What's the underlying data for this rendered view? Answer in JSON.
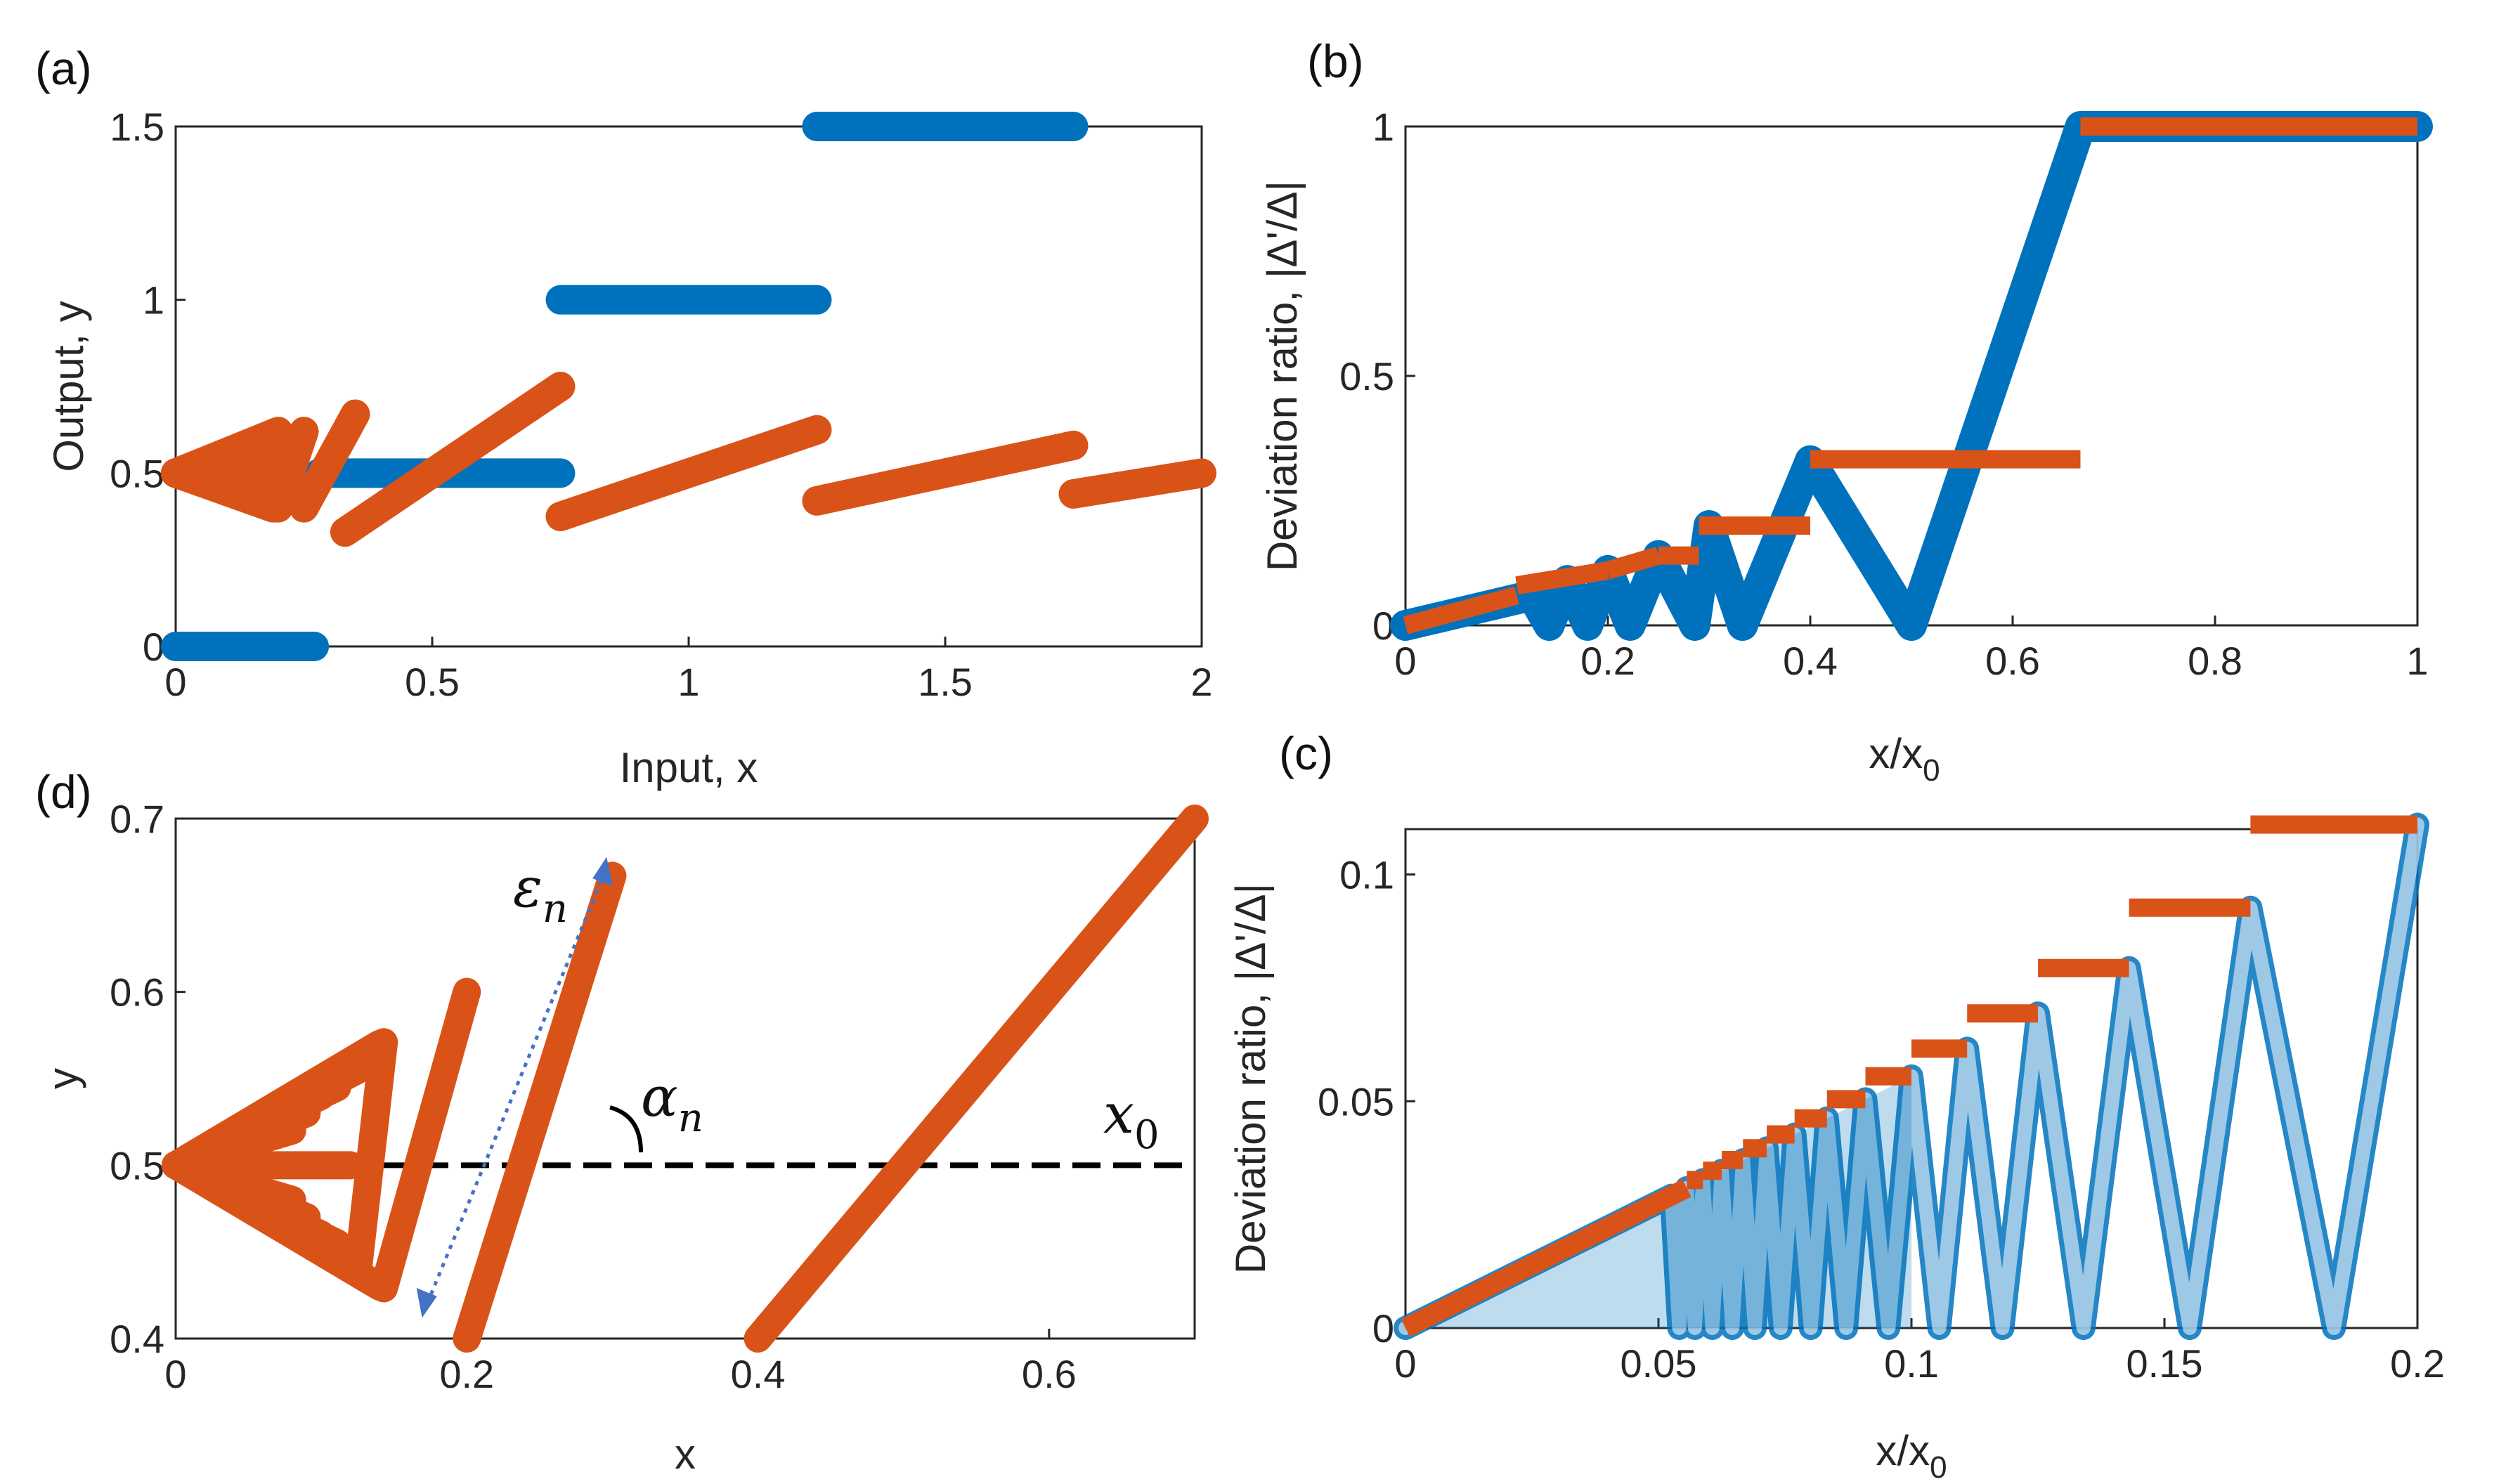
{
  "colors": {
    "blue": "#0072BD",
    "orange": "#D95319",
    "axis": "#262626",
    "dashed": "#000000",
    "arrow": "#4472C4"
  },
  "panels": {
    "a": {
      "letter": "(a)"
    },
    "b": {
      "letter": "(b)"
    },
    "c": {
      "letter": "(c)"
    },
    "d": {
      "letter": "(d)",
      "annotations": {
        "epsilon": "ε",
        "epsilon_sub": "n",
        "alpha": "α",
        "alpha_sub": "n",
        "x0": "x",
        "x0_sub": "0"
      }
    }
  },
  "chart_data": [
    {
      "id": "a",
      "type": "scatter",
      "xlabel": "Input, x",
      "ylabel": "Output, y",
      "xlim": [
        0,
        2
      ],
      "ylim": [
        0,
        1.5
      ],
      "xticks": [
        0,
        0.5,
        1,
        1.5,
        2
      ],
      "xtick_labels": [
        "0",
        "0.5",
        "1",
        "1.5",
        "2"
      ],
      "yticks": [
        0,
        0.5,
        1,
        1.5
      ],
      "ytick_labels": [
        "0",
        "0.5",
        "1",
        "1.5"
      ],
      "grid": false,
      "series": [
        {
          "color": "blue",
          "segments": [
            [
              [
                0,
                0
              ],
              [
                0.27,
                0
              ]
            ],
            [
              [
                0.28,
                0.5
              ],
              [
                0.75,
                0.5
              ]
            ],
            [
              [
                0.75,
                1
              ],
              [
                1.25,
                1
              ]
            ],
            [
              [
                1.25,
                1.5
              ],
              [
                1.75,
                1.5
              ]
            ]
          ]
        },
        {
          "color": "orange",
          "segments": [
            [
              [
                0,
                0.5
              ],
              [
                0.2,
                0.62
              ]
            ],
            [
              [
                0,
                0.5
              ],
              [
                0.2,
                0.6
              ]
            ],
            [
              [
                0,
                0.5
              ],
              [
                0.2,
                0.58
              ]
            ],
            [
              [
                0,
                0.5
              ],
              [
                0.2,
                0.56
              ]
            ],
            [
              [
                0,
                0.5
              ],
              [
                0.2,
                0.54
              ]
            ],
            [
              [
                0,
                0.5
              ],
              [
                0.2,
                0.46
              ]
            ],
            [
              [
                0,
                0.5
              ],
              [
                0.2,
                0.44
              ]
            ],
            [
              [
                0,
                0.5
              ],
              [
                0.2,
                0.42
              ]
            ],
            [
              [
                0,
                0.5
              ],
              [
                0.19,
                0.4
              ]
            ],
            [
              [
                0,
                0.5
              ],
              [
                0.12,
                0.5
              ]
            ],
            [
              [
                0.2,
                0.4
              ],
              [
                0.25,
                0.62
              ]
            ],
            [
              [
                0.25,
                0.4
              ],
              [
                0.35,
                0.67
              ]
            ],
            [
              [
                0.33,
                0.33
              ],
              [
                0.75,
                0.75
              ]
            ],
            [
              [
                0.75,
                0.375
              ],
              [
                1.25,
                0.625
              ]
            ],
            [
              [
                1.25,
                0.42
              ],
              [
                1.75,
                0.58
              ]
            ],
            [
              [
                1.75,
                0.44
              ],
              [
                2,
                0.5
              ]
            ]
          ]
        }
      ]
    },
    {
      "id": "b",
      "type": "line",
      "xlabel": "x/x",
      "xlabel_sub": "0",
      "ylabel": "Deviation ratio, |Δ'/Δ|",
      "xlim": [
        0,
        1
      ],
      "ylim": [
        0,
        1
      ],
      "xticks": [
        0,
        0.2,
        0.4,
        0.6,
        0.8,
        1
      ],
      "xtick_labels": [
        "0",
        "0.2",
        "0.4",
        "0.6",
        "0.8",
        "1"
      ],
      "yticks": [
        0,
        0.5,
        1
      ],
      "ytick_labels": [
        "0",
        "0.5",
        "1"
      ],
      "grid": false,
      "series": [
        {
          "color": "blue",
          "marker": "filled-circle",
          "polyline": [
            [
              0,
              0
            ],
            [
              0.125,
              0.06
            ],
            [
              0.142,
              0
            ],
            [
              0.16,
              0.09
            ],
            [
              0.18,
              0
            ],
            [
              0.2,
              0.11
            ],
            [
              0.222,
              0
            ],
            [
              0.25,
              0.14
            ],
            [
              0.286,
              0
            ],
            [
              0.286,
              0
            ],
            [
              0.3,
              0.2
            ],
            [
              0.333,
              0
            ],
            [
              0.4,
              0.33
            ],
            [
              0.5,
              0
            ],
            [
              0.667,
              1
            ],
            [
              1,
              1
            ]
          ]
        },
        {
          "color": "orange",
          "marker": "x",
          "segments": [
            [
              [
                0,
                0
              ],
              [
                0.11,
                0.06
              ]
            ],
            [
              [
                0.11,
                0.08
              ],
              [
                0.2,
                0.11
              ]
            ],
            [
              [
                0.2,
                0.11
              ],
              [
                0.25,
                0.14
              ]
            ],
            [
              [
                0.25,
                0.14
              ],
              [
                0.29,
                0.14
              ]
            ],
            [
              [
                0.29,
                0.2
              ],
              [
                0.4,
                0.2
              ]
            ],
            [
              [
                0.4,
                0.333
              ],
              [
                0.667,
                0.333
              ]
            ],
            [
              [
                0.667,
                1
              ],
              [
                1,
                1
              ]
            ]
          ]
        }
      ]
    },
    {
      "id": "c",
      "type": "line",
      "xlabel": "x/x",
      "xlabel_sub": "0",
      "ylabel": "Deviation ratio, |Δ'/Δ|",
      "xlim": [
        0,
        0.2
      ],
      "ylim": [
        0,
        0.11
      ],
      "xticks": [
        0,
        0.05,
        0.1,
        0.15,
        0.2
      ],
      "xtick_labels": [
        "0",
        "0.05",
        "0.1",
        "0.15",
        "0.2"
      ],
      "yticks": [
        0,
        0.05,
        0.1
      ],
      "ytick_labels": [
        "0",
        "0.05",
        "0.1"
      ],
      "grid": false,
      "series": [
        {
          "color": "blue",
          "marker": "open-circle",
          "peaks": [
            [
              0.0526,
              0.0556
            ],
            [
              0.0556,
              0.0588
            ],
            [
              0.0588,
              0.0625
            ],
            [
              0.0625,
              0.0667
            ],
            [
              0.0667,
              0.0714
            ],
            [
              0.0714,
              0.0769
            ],
            [
              0.0769,
              0.0833
            ],
            [
              0.0833,
              0.0909
            ],
            [
              0.0909,
              0.1
            ],
            [
              0.1,
              0.111
            ],
            [
              0.111,
              0.125
            ],
            [
              0.125,
              0.143
            ],
            [
              0.143,
              0.167
            ],
            [
              0.167,
              0.2
            ]
          ]
        },
        {
          "color": "orange",
          "marker": "x",
          "levels": [
            [
              0.0556,
              0.0588,
              0.0588
            ],
            [
              0.0588,
              0.0625,
              0.0625
            ],
            [
              0.0625,
              0.0667,
              0.0667
            ],
            [
              0.0667,
              0.0714,
              0.0714
            ],
            [
              0.0714,
              0.0769,
              0.0769
            ],
            [
              0.0769,
              0.0833,
              0.0833
            ],
            [
              0.0833,
              0.0909,
              0.0909
            ],
            [
              0.0909,
              0.1,
              0.1
            ],
            [
              0.1,
              0.111,
              0.111
            ],
            [
              0.111,
              0.125,
              0.125
            ],
            [
              0.125,
              0.143,
              0.143
            ],
            [
              0.143,
              0.167,
              0.167
            ],
            [
              0.167,
              0.2,
              0.2
            ]
          ]
        }
      ]
    },
    {
      "id": "d",
      "type": "scatter",
      "xlabel": "x",
      "ylabel": "y",
      "xlim": [
        0,
        0.7
      ],
      "ylim": [
        0.4,
        0.7
      ],
      "xticks": [
        0,
        0.2,
        0.4,
        0.6
      ],
      "xtick_labels": [
        "0",
        "0.2",
        "0.4",
        "0.6"
      ],
      "yticks": [
        0.4,
        0.5,
        0.6,
        0.7
      ],
      "ytick_labels": [
        "0.4",
        "0.5",
        "0.6",
        "0.7"
      ],
      "grid": false,
      "reference_line_y": 0.5,
      "series": [
        {
          "color": "orange",
          "segments": [
            [
              [
                0.4,
                0.4
              ],
              [
                0.7,
                0.7
              ]
            ],
            [
              [
                0.2,
                0.4
              ],
              [
                0.3,
                0.667
              ]
            ],
            [
              [
                0.143,
                0.429
              ],
              [
                0.2,
                0.6
              ]
            ],
            [
              [
                0.125,
                0.438
              ],
              [
                0.143,
                0.571
              ]
            ],
            [
              [
                0,
                0.5
              ],
              [
                0.14,
                0.57
              ]
            ],
            [
              [
                0,
                0.5
              ],
              [
                0.14,
                0.43
              ]
            ],
            [
              [
                0,
                0.5
              ],
              [
                0.125,
                0.555
              ]
            ],
            [
              [
                0,
                0.5
              ],
              [
                0.125,
                0.445
              ]
            ],
            [
              [
                0,
                0.5
              ],
              [
                0.111,
                0.545
              ]
            ],
            [
              [
                0,
                0.5
              ],
              [
                0.111,
                0.455
              ]
            ],
            [
              [
                0,
                0.5
              ],
              [
                0.1,
                0.54
              ]
            ],
            [
              [
                0,
                0.5
              ],
              [
                0.1,
                0.46
              ]
            ],
            [
              [
                0,
                0.5
              ],
              [
                0.09,
                0.53
              ]
            ],
            [
              [
                0,
                0.5
              ],
              [
                0.09,
                0.47
              ]
            ],
            [
              [
                0,
                0.5
              ],
              [
                0.08,
                0.52
              ]
            ],
            [
              [
                0,
                0.5
              ],
              [
                0.08,
                0.48
              ]
            ],
            [
              [
                0,
                0.5
              ],
              [
                0.12,
                0.5
              ]
            ]
          ]
        }
      ]
    }
  ]
}
